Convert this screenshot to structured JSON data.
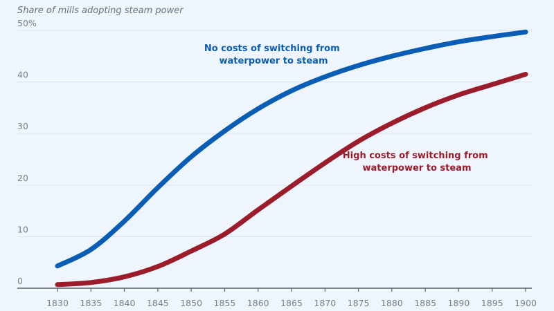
{
  "chart_data": {
    "type": "line",
    "title": "",
    "ylabel": "Share of mills adopting steam power",
    "xlabel": "",
    "ylim": [
      0,
      50
    ],
    "xlim": [
      1830,
      1900
    ],
    "y_ticks": [
      0,
      10,
      20,
      30,
      40,
      50
    ],
    "y_tick_labels": [
      "0",
      "10",
      "20",
      "30",
      "40",
      "50%"
    ],
    "x_ticks": [
      1830,
      1835,
      1840,
      1845,
      1850,
      1855,
      1860,
      1865,
      1870,
      1875,
      1880,
      1885,
      1890,
      1895,
      1900
    ],
    "x_tick_labels": [
      "1830",
      "1835",
      "1840",
      "1845",
      "1850",
      "1855",
      "1860",
      "1865",
      "1870",
      "1875",
      "1880",
      "1885",
      "1890",
      "1895",
      "1900"
    ],
    "grid": "horizontal",
    "x": [
      1830,
      1835,
      1840,
      1845,
      1850,
      1855,
      1860,
      1865,
      1870,
      1875,
      1880,
      1885,
      1890,
      1895,
      1900
    ],
    "series": [
      {
        "name": "No costs of switching from waterpower to steam",
        "color": "#0a5db5",
        "values": [
          4.3,
          7.5,
          13.0,
          19.5,
          25.5,
          30.5,
          34.8,
          38.3,
          41.0,
          43.2,
          45.0,
          46.5,
          47.8,
          48.8,
          49.7
        ]
      },
      {
        "name": "High costs of switching from waterpower to steam",
        "color": "#9b1c2a",
        "values": [
          0.7,
          1.1,
          2.2,
          4.2,
          7.2,
          10.5,
          15.2,
          19.8,
          24.3,
          28.5,
          32.0,
          35.0,
          37.5,
          39.5,
          41.5
        ]
      }
    ],
    "annotations": [
      {
        "series": 0,
        "lines": [
          "No costs of switching from",
          "waterpower to steam"
        ]
      },
      {
        "series": 1,
        "lines": [
          "High costs of switching from",
          "waterpower to steam"
        ]
      }
    ]
  }
}
